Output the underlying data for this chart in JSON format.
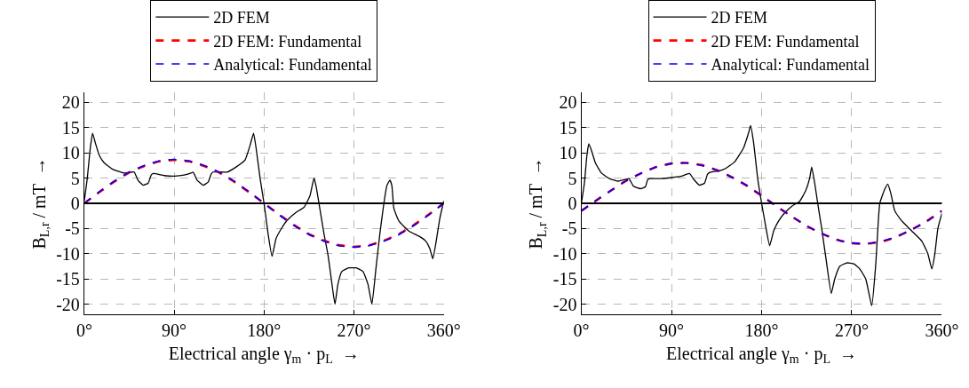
{
  "chart_data": [
    {
      "type": "line",
      "xlabel": "Electrical angle γ$_{m}$ · p$_{L}$  →",
      "ylabel": "B$_{L,r}$ / mT  →",
      "xlim": [
        0,
        360
      ],
      "xticks": [
        {
          "value": 0,
          "label": "0°"
        },
        {
          "value": 90,
          "label": "90°"
        },
        {
          "value": 180,
          "label": "180°"
        },
        {
          "value": 270,
          "label": "270°"
        },
        {
          "value": 360,
          "label": "360°"
        }
      ],
      "ylim": [
        -22,
        22
      ],
      "yticks": [
        -20,
        -15,
        -10,
        -5,
        0,
        5,
        10,
        15,
        20
      ],
      "grid": true,
      "legend": "top",
      "marker": "none",
      "ref_lines": [
        {
          "axis": "y",
          "value": 0,
          "color": "#000000"
        }
      ],
      "series": [
        {
          "name": "2D FEM",
          "color": "#000000",
          "line_style": "solid",
          "x": [
            0,
            3,
            6,
            8.3,
            11,
            15,
            20,
            28,
            40,
            48,
            50,
            54,
            59,
            64,
            67,
            69,
            80,
            90,
            100,
            107,
            109,
            113,
            119,
            124,
            127,
            129,
            143,
            152,
            161,
            166,
            169.5,
            172,
            176,
            180,
            184,
            188,
            192,
            198,
            203,
            212,
            220,
            226,
            230,
            232,
            235,
            240,
            244,
            248,
            251,
            254,
            258,
            265,
            272,
            279,
            284,
            288,
            292,
            296,
            300,
            303,
            306,
            308,
            310,
            315,
            325,
            335,
            342,
            346,
            349,
            352,
            356,
            360
          ],
          "values": [
            0.5,
            5,
            11,
            13.9,
            12,
            9.5,
            8,
            6.8,
            6.0,
            6.2,
            6.2,
            4.5,
            3.6,
            4.0,
            5.6,
            5.9,
            5.5,
            5.4,
            5.6,
            6.0,
            6.2,
            4.6,
            3.6,
            4.2,
            5.8,
            6.2,
            6.2,
            7.2,
            8.6,
            11.5,
            13.9,
            11,
            5,
            0,
            -6,
            -10.5,
            -7,
            -4.8,
            -3.4,
            -1.8,
            -0.8,
            1.5,
            5,
            3.5,
            0,
            -6,
            -10.2,
            -16,
            -20,
            -16,
            -13.5,
            -12.8,
            -12.8,
            -13.5,
            -16,
            -20,
            -13,
            -6,
            0,
            3.5,
            4.6,
            3.5,
            -1,
            -3.5,
            -5.5,
            -6.5,
            -7.5,
            -9,
            -11,
            -8,
            -3,
            0.5
          ]
        },
        {
          "name": "2D FEM: Fundamental",
          "color": "#ff0000",
          "line_style": "dashed",
          "x": [
            0,
            15,
            30,
            45,
            60,
            75,
            90,
            105,
            120,
            135,
            150,
            165,
            180,
            195,
            210,
            225,
            240,
            255,
            270,
            285,
            300,
            315,
            330,
            345,
            360
          ],
          "values": [
            0,
            2.2,
            4.3,
            6.1,
            7.4,
            8.3,
            8.6,
            8.3,
            7.4,
            6.1,
            4.3,
            2.2,
            0,
            -2.2,
            -4.3,
            -6.1,
            -7.4,
            -8.3,
            -8.6,
            -8.3,
            -7.4,
            -6.1,
            -4.3,
            -2.2,
            0
          ]
        },
        {
          "name": "Analytical: Fundamental",
          "color": "#0000ff",
          "line_style": "dashed",
          "x": [
            0,
            15,
            30,
            45,
            60,
            75,
            90,
            105,
            120,
            135,
            150,
            165,
            180,
            195,
            210,
            225,
            240,
            255,
            270,
            285,
            300,
            315,
            330,
            345,
            360
          ],
          "values": [
            0,
            2.3,
            4.4,
            6.2,
            7.5,
            8.4,
            8.7,
            8.4,
            7.5,
            6.2,
            4.4,
            2.3,
            0,
            -2.3,
            -4.4,
            -6.2,
            -7.5,
            -8.4,
            -8.7,
            -8.4,
            -7.5,
            -6.2,
            -4.4,
            -2.3,
            0
          ]
        }
      ]
    },
    {
      "type": "line",
      "xlabel": "Electrical angle γ$_{m}$ · p$_{L}$  →",
      "ylabel": "B$_{L,r}$ / mT  →",
      "xlim": [
        0,
        360
      ],
      "xticks": [
        {
          "value": 0,
          "label": "0°"
        },
        {
          "value": 90,
          "label": "90°"
        },
        {
          "value": 180,
          "label": "180°"
        },
        {
          "value": 270,
          "label": "270°"
        },
        {
          "value": 360,
          "label": "360°"
        }
      ],
      "ylim": [
        -22,
        22
      ],
      "yticks": [
        -20,
        -15,
        -10,
        -5,
        0,
        5,
        10,
        15,
        20
      ],
      "grid": true,
      "legend": "top",
      "marker": "none",
      "ref_lines": [
        {
          "axis": "y",
          "value": 0,
          "color": "#000000"
        }
      ],
      "series": [
        {
          "name": "2D FEM",
          "color": "#000000",
          "line_style": "solid",
          "x": [
            0,
            3,
            5.5,
            7.4,
            10,
            14,
            20,
            28,
            37,
            45,
            47.5,
            52,
            59,
            64,
            66,
            68,
            80,
            90,
            100,
            108,
            112,
            118,
            123,
            126,
            129,
            137,
            144,
            153,
            162,
            167,
            169,
            172,
            176,
            180,
            184,
            188,
            192,
            197,
            203,
            210,
            218,
            224,
            228,
            230,
            233,
            236,
            240,
            245,
            249.5,
            253,
            258,
            265,
            272,
            278,
            284,
            290,
            294,
            298,
            303,
            306,
            309,
            313,
            320,
            330,
            340,
            346,
            350,
            353,
            356,
            360
          ],
          "values": [
            0,
            4,
            9.5,
            11.8,
            10.5,
            8,
            6,
            4.9,
            4.4,
            4.8,
            4.9,
            3.4,
            2.9,
            3.3,
            4.6,
            4.9,
            4.9,
            5.1,
            5.4,
            5.9,
            4.8,
            3.6,
            4.0,
            5.8,
            6.2,
            6.4,
            6.9,
            8.2,
            11,
            14,
            15.4,
            12,
            5,
            0,
            -4.5,
            -8.4,
            -5.5,
            -3.5,
            -1.9,
            -0.6,
            0.4,
            2.5,
            5,
            7.2,
            4,
            0,
            -5,
            -12,
            -17.9,
            -15,
            -12.5,
            -11.8,
            -12,
            -13,
            -15,
            -20.3,
            -12,
            0,
            2.8,
            3.8,
            2,
            -1.5,
            -3.5,
            -5.5,
            -7.5,
            -10,
            -13,
            -10,
            -5,
            -2
          ]
        },
        {
          "name": "2D FEM: Fundamental",
          "color": "#ff0000",
          "line_style": "dashed",
          "x": [
            0,
            15,
            30,
            45,
            60,
            75,
            90,
            105,
            120,
            135,
            150,
            165,
            180,
            195,
            210,
            225,
            240,
            255,
            270,
            285,
            300,
            315,
            330,
            345,
            360
          ],
          "values": [
            -1.5,
            0.6,
            2.6,
            4.5,
            6.0,
            7.2,
            7.9,
            8.0,
            7.6,
            6.6,
            5.2,
            3.5,
            1.5,
            -0.6,
            -2.6,
            -4.5,
            -6.0,
            -7.2,
            -7.9,
            -8.0,
            -7.6,
            -6.6,
            -5.2,
            -3.5,
            -1.5
          ]
        },
        {
          "name": "Analytical: Fundamental",
          "color": "#0000ff",
          "line_style": "dashed",
          "x": [
            0,
            15,
            30,
            45,
            60,
            75,
            90,
            105,
            120,
            135,
            150,
            165,
            180,
            195,
            210,
            225,
            240,
            255,
            270,
            285,
            300,
            315,
            330,
            345,
            360
          ],
          "values": [
            -1.5,
            0.6,
            2.6,
            4.5,
            6.0,
            7.2,
            7.9,
            8.0,
            7.5,
            6.6,
            5.2,
            3.6,
            1.5,
            -0.6,
            -2.6,
            -4.5,
            -6.0,
            -7.2,
            -7.9,
            -8.0,
            -7.5,
            -6.6,
            -5.2,
            -3.6,
            -1.5
          ]
        }
      ]
    }
  ]
}
